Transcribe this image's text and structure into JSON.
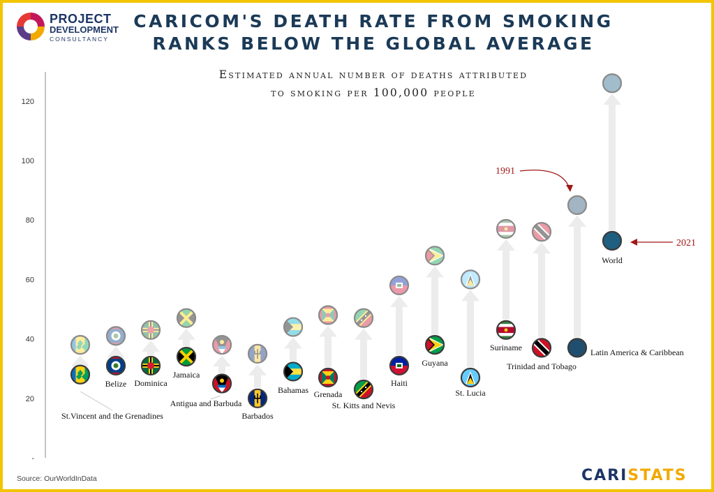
{
  "logo": {
    "line1": "PROJECT",
    "line2": "DEVELOPMENT",
    "line3": "CONSULTANCY"
  },
  "title": {
    "line1": "CARICOM'S DEATH RATE FROM SMOKING",
    "line2": "RANKS BELOW THE GLOBAL AVERAGE"
  },
  "subtitle": {
    "line1": "Estimated annual number of deaths attributed",
    "line2": "to smoking per 100,000 people"
  },
  "source": "Source: OurWorldInData",
  "brand": {
    "part1": "CARI",
    "part2": "STATS"
  },
  "colors": {
    "title": "#1b3a57",
    "annotation": "#a01818",
    "arrow": "#ececec",
    "frame": "#f2c500"
  },
  "chart_data": {
    "type": "scatter",
    "ylim": [
      0,
      130
    ],
    "yticks": [
      {
        "value": 0,
        "label": "-"
      },
      {
        "value": 20,
        "label": "20"
      },
      {
        "value": 40,
        "label": "40"
      },
      {
        "value": 60,
        "label": "60"
      },
      {
        "value": 80,
        "label": "80"
      },
      {
        "value": 100,
        "label": "100"
      },
      {
        "value": 120,
        "label": "120"
      }
    ],
    "series": [
      {
        "name": "1991",
        "key": "y1991"
      },
      {
        "name": "2021",
        "key": "y2021"
      }
    ],
    "countries": [
      {
        "name": "St.Vincent and the Grenadines",
        "flag": "st-vincent-flag-icon",
        "y1991": 38,
        "y2021": 28
      },
      {
        "name": "Belize",
        "flag": "belize-flag-icon",
        "y1991": 41,
        "y2021": 31
      },
      {
        "name": "Dominica",
        "flag": "dominica-flag-icon",
        "y1991": 43,
        "y2021": 31
      },
      {
        "name": "Jamaica",
        "flag": "jamaica-flag-icon",
        "y1991": 47,
        "y2021": 34
      },
      {
        "name": "Antigua and Barbuda",
        "flag": "antigua-flag-icon",
        "y1991": 38,
        "y2021": 25
      },
      {
        "name": "Barbados",
        "flag": "barbados-flag-icon",
        "y1991": 35,
        "y2021": 20
      },
      {
        "name": "Bahamas",
        "flag": "bahamas-flag-icon",
        "y1991": 44,
        "y2021": 29
      },
      {
        "name": "Grenada",
        "flag": "grenada-flag-icon",
        "y1991": 48,
        "y2021": 27
      },
      {
        "name": "St. Kitts and Nevis",
        "flag": "st-kitts-flag-icon",
        "y1991": 47,
        "y2021": 23
      },
      {
        "name": "Haiti",
        "flag": "haiti-flag-icon",
        "y1991": 58,
        "y2021": 31
      },
      {
        "name": "Guyana",
        "flag": "guyana-flag-icon",
        "y1991": 68,
        "y2021": 38
      },
      {
        "name": "St. Lucia",
        "flag": "st-lucia-flag-icon",
        "y1991": 60,
        "y2021": 27
      },
      {
        "name": "Suriname",
        "flag": "suriname-flag-icon",
        "y1991": 77,
        "y2021": 43
      },
      {
        "name": "Trinidad and Tobago",
        "flag": "trinidad-flag-icon",
        "y1991": 76,
        "y2021": 37
      },
      {
        "name": "Latin America & Caribbean",
        "flag": "latam-dot-icon",
        "y1991": 85,
        "y2021": 37
      },
      {
        "name": "World",
        "flag": "world-dot-icon",
        "y1991": 126,
        "y2021": 73
      }
    ],
    "annotations": [
      {
        "text": "1991",
        "target": "Latin America & Caribbean",
        "series": "1991"
      },
      {
        "text": "2021",
        "target": "World",
        "series": "2021"
      }
    ]
  }
}
